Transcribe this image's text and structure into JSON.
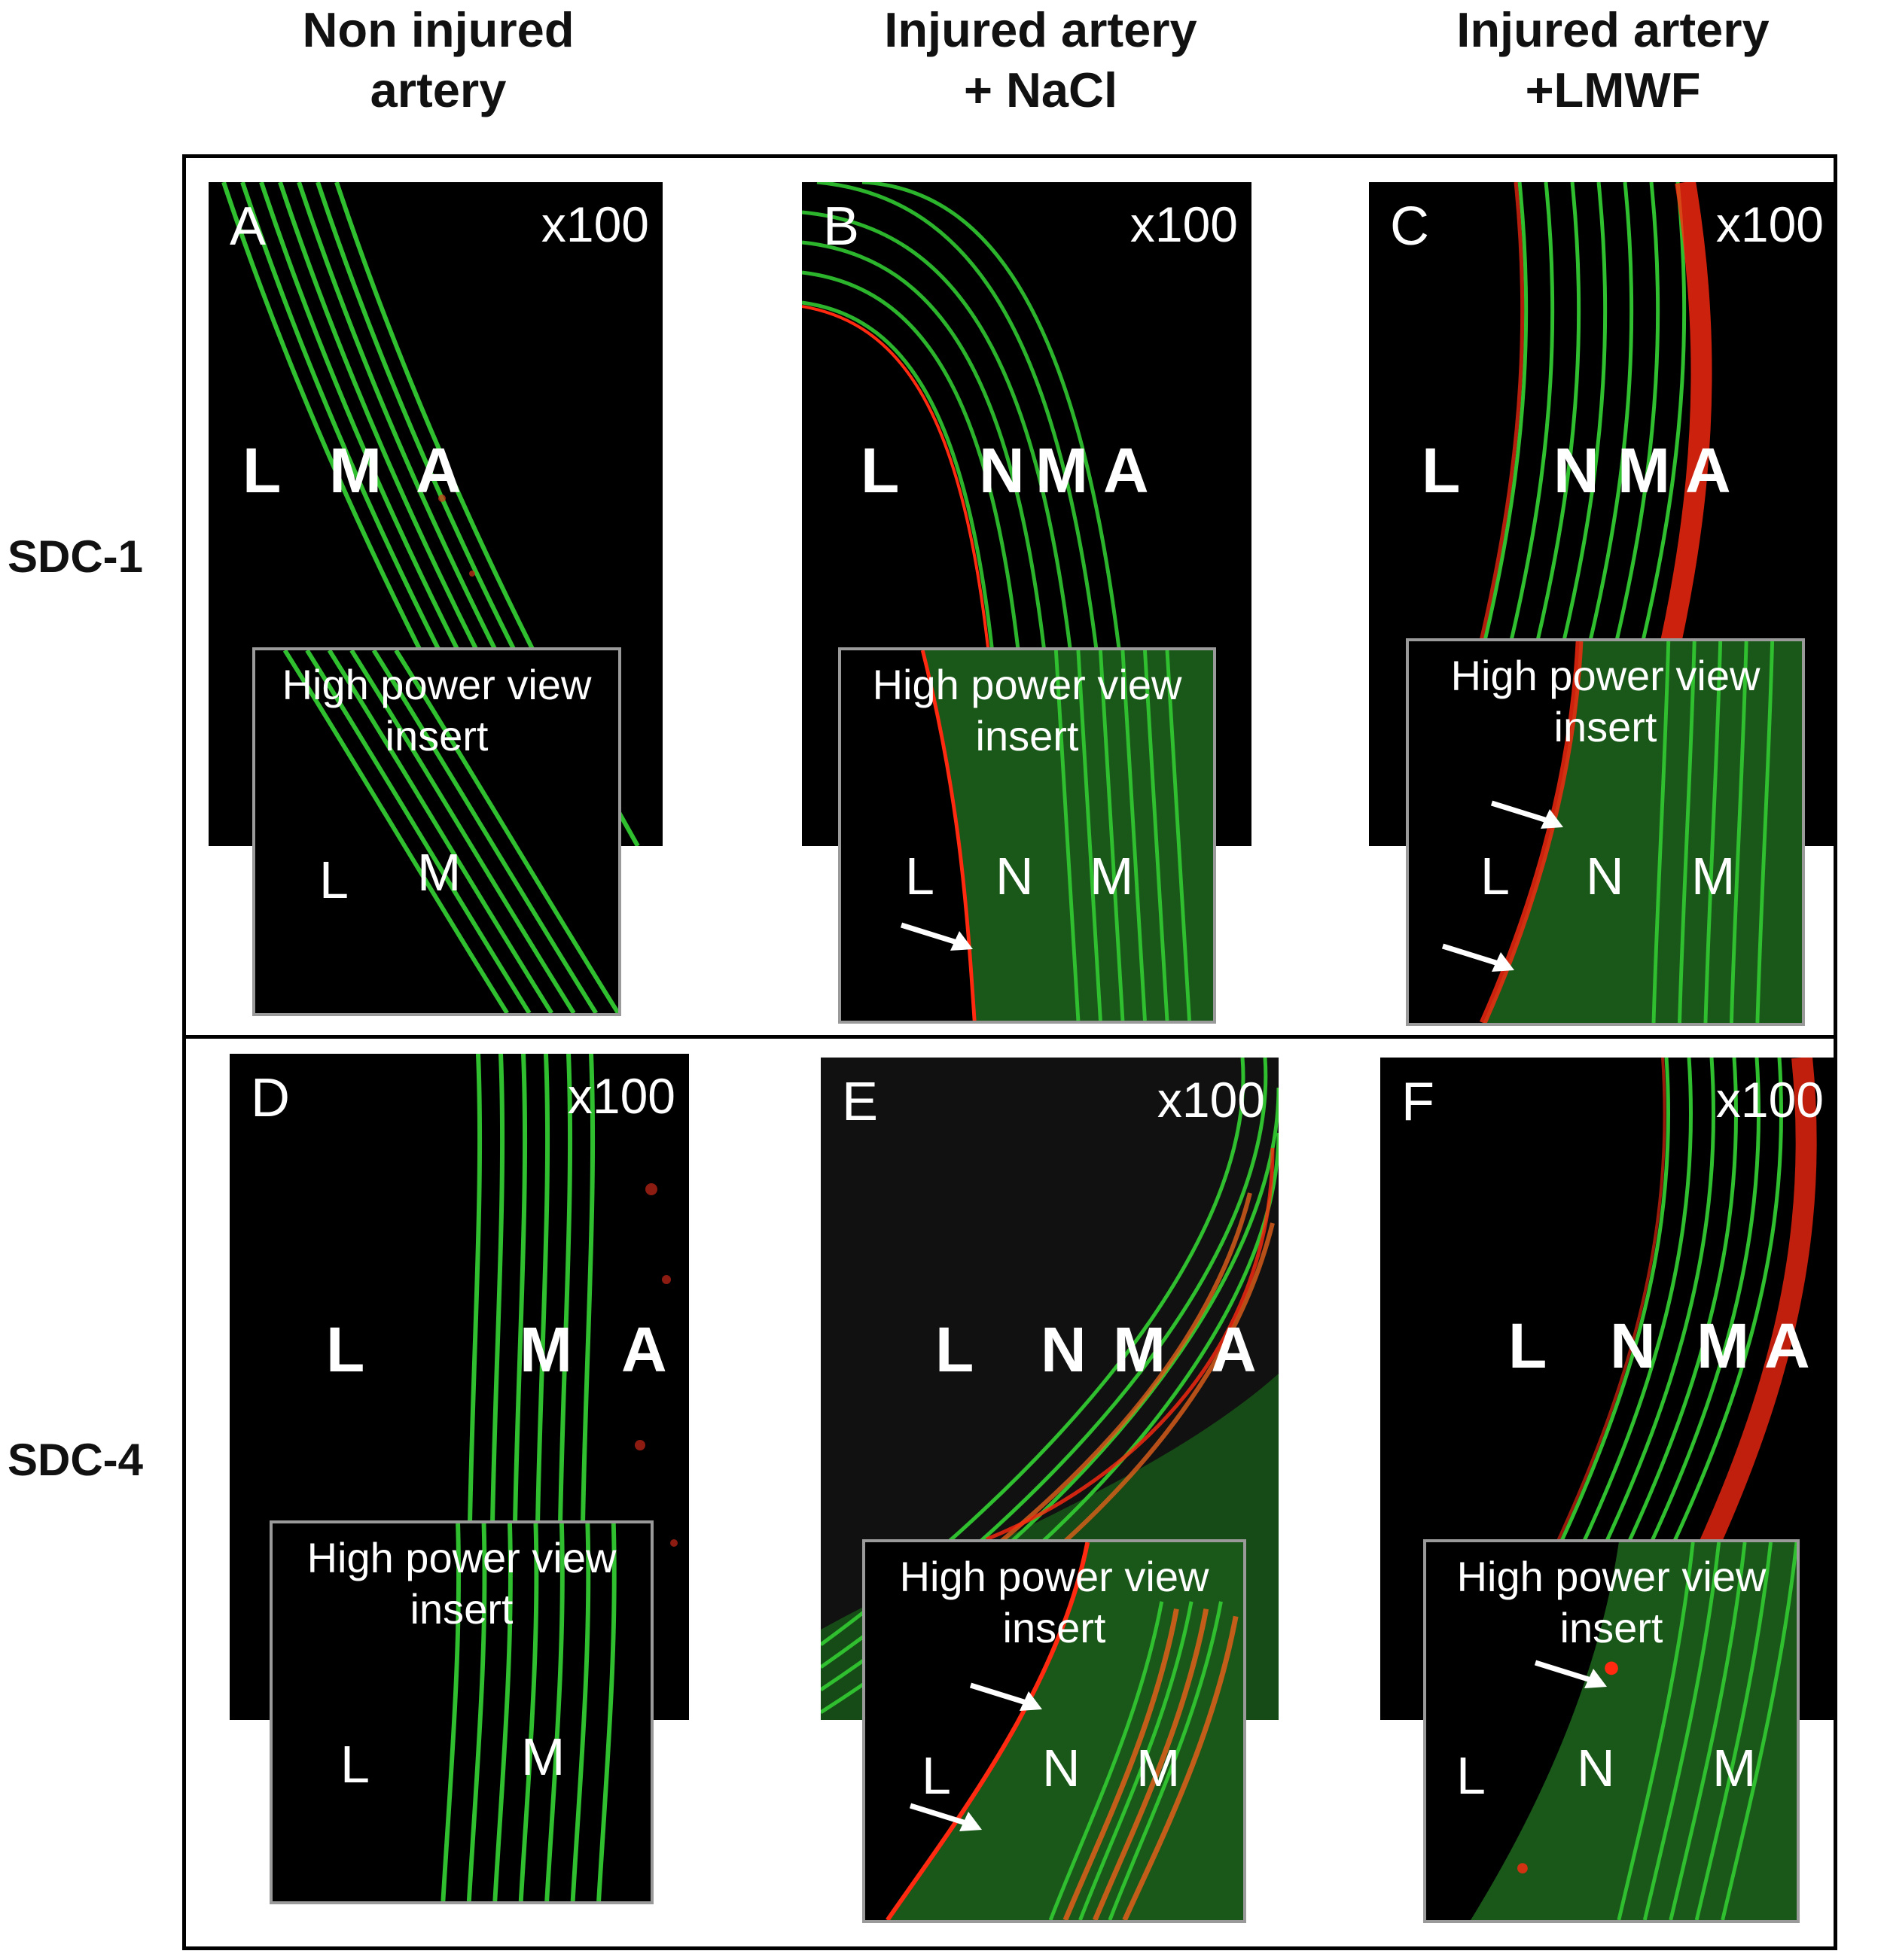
{
  "columns": [
    {
      "line1": "Non injured",
      "line2": "artery"
    },
    {
      "line1": "Injured artery",
      "line2": "+ NaCl"
    },
    {
      "line1": "Injured artery",
      "line2": "+LMWF"
    }
  ],
  "rows": [
    "SDC-1",
    "SDC-4"
  ],
  "panels": [
    {
      "letter": "A",
      "mag": "x100",
      "layers": [
        "L",
        "M",
        "A"
      ],
      "inset_layers": [
        "L",
        "M"
      ]
    },
    {
      "letter": "B",
      "mag": "x100",
      "layers": [
        "L",
        "N",
        "M",
        "A"
      ],
      "inset_layers": [
        "L",
        "N",
        "M"
      ]
    },
    {
      "letter": "C",
      "mag": "x100",
      "layers": [
        "L",
        "N",
        "M",
        "A"
      ],
      "inset_layers": [
        "L",
        "N",
        "M"
      ]
    },
    {
      "letter": "D",
      "mag": "x100",
      "layers": [
        "L",
        "M",
        "A"
      ],
      "inset_layers": [
        "L",
        "M"
      ]
    },
    {
      "letter": "E",
      "mag": "x100",
      "layers": [
        "L",
        "N",
        "M",
        "A"
      ],
      "inset_layers": [
        "L",
        "N",
        "M"
      ]
    },
    {
      "letter": "F",
      "mag": "x100",
      "layers": [
        "L",
        "N",
        "M",
        "A"
      ],
      "inset_layers": [
        "L",
        "N",
        "M"
      ]
    }
  ],
  "inset_title": {
    "line1": "High power view",
    "line2": "insert"
  },
  "colors": {
    "elastin": "#2fbf2f",
    "stain": "#ff2a10",
    "background": "#000000",
    "frame": "#000000"
  }
}
